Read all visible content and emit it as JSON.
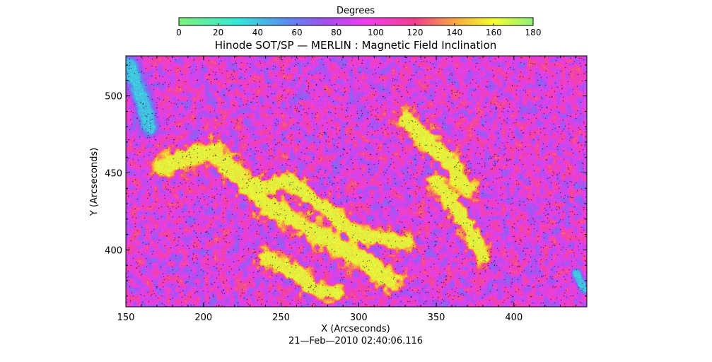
{
  "chart_data": {
    "type": "heatmap",
    "title": "Hinode SOT/SP — MERLIN : Magnetic Field Inclination",
    "xlabel": "X (Arcseconds)",
    "ylabel": "Y (Arcseconds)",
    "footer": "21—Feb—2010 02:40:06.116",
    "xlim": [
      150,
      447
    ],
    "ylim": [
      363,
      526
    ],
    "xticks": [
      150,
      200,
      250,
      300,
      350,
      400
    ],
    "xtick_labels": [
      "150",
      "200",
      "250",
      "300",
      "350",
      "400"
    ],
    "yticks": [
      400,
      450,
      500
    ],
    "ytick_labels": [
      "400",
      "450",
      "500"
    ],
    "grid": false,
    "colorbar": {
      "label": "Degrees",
      "range": [
        0,
        180
      ],
      "ticks": [
        0,
        20,
        40,
        60,
        80,
        100,
        120,
        140,
        160,
        180
      ],
      "tick_labels": [
        "0",
        "20",
        "40",
        "60",
        "80",
        "100",
        "120",
        "140",
        "160",
        "180"
      ],
      "colormap": [
        [
          0,
          "#7ef27a"
        ],
        [
          30,
          "#33e8d8"
        ],
        [
          55,
          "#5a8cf2"
        ],
        [
          75,
          "#a44df0"
        ],
        [
          95,
          "#f03ef0"
        ],
        [
          120,
          "#f23e8c"
        ],
        [
          140,
          "#f7a540"
        ],
        [
          160,
          "#f5ff2e"
        ],
        [
          180,
          "#8ef27a"
        ]
      ]
    },
    "background_level_deg": 95,
    "features": [
      {
        "kind": "strong-inclination-lane",
        "level_deg": 160,
        "x": [
          175,
          205,
          240,
          275,
          300,
          320
        ],
        "y": [
          455,
          465,
          430,
          410,
          395,
          380
        ],
        "width": 10
      },
      {
        "kind": "strong-inclination-lane",
        "level_deg": 160,
        "x": [
          235,
          255,
          280,
          300,
          330
        ],
        "y": [
          440,
          445,
          425,
          410,
          405
        ],
        "width": 8
      },
      {
        "kind": "strong-inclination-lane",
        "level_deg": 160,
        "x": [
          330,
          345,
          360,
          370
        ],
        "y": [
          485,
          470,
          455,
          440
        ],
        "width": 9
      },
      {
        "kind": "strong-inclination-lane",
        "level_deg": 160,
        "x": [
          350,
          360,
          370,
          380
        ],
        "y": [
          445,
          430,
          415,
          395
        ],
        "width": 8
      },
      {
        "kind": "strong-inclination-lane",
        "level_deg": 160,
        "x": [
          240,
          260,
          270,
          285
        ],
        "y": [
          395,
          385,
          375,
          372
        ],
        "width": 8
      },
      {
        "kind": "weak-inclination-patch",
        "level_deg": 40,
        "x": [
          152,
          160,
          165
        ],
        "y": [
          520,
          500,
          480
        ],
        "width": 8
      },
      {
        "kind": "weak-inclination-patch",
        "level_deg": 40,
        "x": [
          440,
          445
        ],
        "y": [
          385,
          375
        ],
        "width": 4
      }
    ]
  }
}
